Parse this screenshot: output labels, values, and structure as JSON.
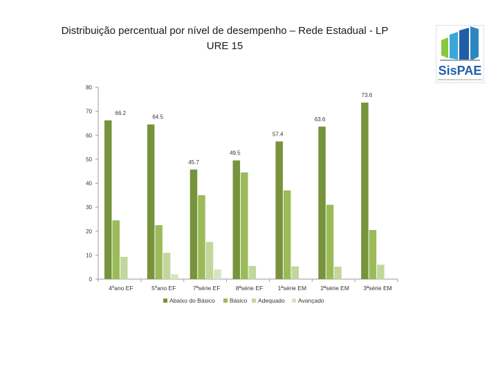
{
  "title_line1": "Distribuição percentual por nível de desempenho – Rede Estadual  - LP",
  "title_line2": "URE 15",
  "logo": {
    "text": "SisPAE",
    "subtitle": "SISTEMA PARAENSE DE AVALIAÇÃO EDUCACIONAL"
  },
  "colors": {
    "abaixo": "#77933c",
    "basico": "#9bbb59",
    "adequado": "#c3d69b",
    "avancado": "#d7e4bd"
  },
  "chart_data": {
    "type": "bar",
    "categories": [
      "4ºano EF",
      "5ºano EF",
      "7ªsérie EF",
      "8ªsérie EF",
      "1ªsérie EM",
      "2ªsérie EM",
      "3ªsérie EM"
    ],
    "series": [
      {
        "name": "Abaixo do Básico",
        "values": [
          66.2,
          64.5,
          45.7,
          49.5,
          57.4,
          63.6,
          73.6
        ]
      },
      {
        "name": "Básico",
        "values": [
          24.5,
          22.5,
          35,
          44.5,
          37,
          31,
          20.5
        ]
      },
      {
        "name": "Adequado",
        "values": [
          9.3,
          11,
          15.5,
          5.5,
          5.3,
          5.2,
          6
        ]
      },
      {
        "name": "Avançado",
        "values": [
          0,
          2,
          4,
          0,
          0,
          0,
          0
        ]
      }
    ],
    "data_labels": [
      "66.2",
      "64.5",
      "45.7",
      "49.5",
      "57.4",
      "63.6",
      "73.6"
    ],
    "yticks": [
      "0",
      "10",
      "20",
      "30",
      "40",
      "50",
      "60",
      "70",
      "80"
    ],
    "ylim": [
      0,
      80
    ],
    "title": "Distribuição percentual por nível de desempenho – Rede Estadual  - LP URE 15",
    "xlabel": "",
    "ylabel": "",
    "legend_position": "bottom"
  }
}
